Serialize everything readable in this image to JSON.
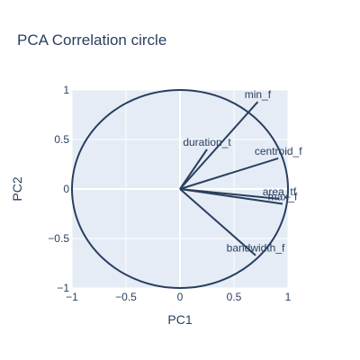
{
  "chart_data": {
    "type": "scatter",
    "title": "PCA Correlation circle",
    "xlabel": "PC1",
    "ylabel": "PC2",
    "xlim": [
      -1,
      1
    ],
    "ylim": [
      -1,
      1
    ],
    "xticks": [
      "−1",
      "−0.5",
      "0",
      "0.5",
      "1"
    ],
    "yticks": [
      "−1",
      "−0.5",
      "0",
      "0.5",
      "1"
    ],
    "xtick_values": [
      -1,
      -0.5,
      0,
      0.5,
      1
    ],
    "ytick_values": [
      -1,
      -0.5,
      0,
      0.5,
      1
    ],
    "grid": true,
    "unit_circle": true,
    "vectors": [
      {
        "name": "min_f",
        "x": 0.72,
        "y": 0.88
      },
      {
        "name": "duration_t",
        "x": 0.25,
        "y": 0.4
      },
      {
        "name": "centroid_f",
        "x": 0.91,
        "y": 0.31
      },
      {
        "name": "area_tf",
        "x": 0.92,
        "y": -0.1
      },
      {
        "name": "max_f",
        "x": 0.95,
        "y": -0.15
      },
      {
        "name": "bandwidth_f",
        "x": 0.7,
        "y": -0.67
      }
    ],
    "colors": {
      "line": "#2a3f5f",
      "plot_bg": "#e5ecf6",
      "grid": "#ffffff"
    }
  }
}
